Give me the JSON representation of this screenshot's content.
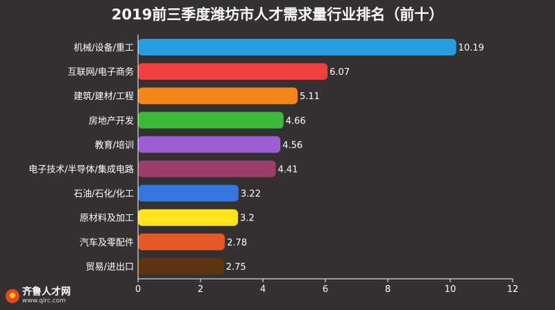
{
  "chart_data": {
    "type": "bar",
    "orientation": "horizontal",
    "title": "2019前三季度潍坊市人才需求量行业排名（前十）",
    "categories": [
      "机械/设备/重工",
      "互联网/电子商务",
      "建筑/建材/工程",
      "房地产开发",
      "教育/培训",
      "电子技术/半导体/集成电路",
      "石油/石化/化工",
      "原材料及加工",
      "汽车及零配件",
      "贸易/进出口"
    ],
    "values": [
      10.19,
      6.07,
      5.11,
      4.66,
      4.56,
      4.41,
      3.22,
      3.2,
      2.78,
      2.75
    ],
    "value_labels": [
      "10.19",
      "6.07",
      "5.11",
      "4.66",
      "4.56",
      "4.41",
      "3.22",
      "3.2",
      "2.78",
      "2.75"
    ],
    "colors": [
      "#2a9ddf",
      "#ee3e3e",
      "#f58718",
      "#3db93a",
      "#9b5fcf",
      "#9c3e6c",
      "#3475e0",
      "#ffe41c",
      "#e65726",
      "#5c3411"
    ],
    "xlim": [
      0,
      12
    ],
    "x_ticks": [
      0,
      2,
      4,
      6,
      8,
      10,
      12
    ],
    "x_tick_labels": [
      "0",
      "2",
      "4",
      "6",
      "8",
      "10",
      "12"
    ],
    "grid": false,
    "legend": "none"
  },
  "watermark": {
    "name": "齐鲁人才网",
    "url": "www.qlrc.com"
  }
}
